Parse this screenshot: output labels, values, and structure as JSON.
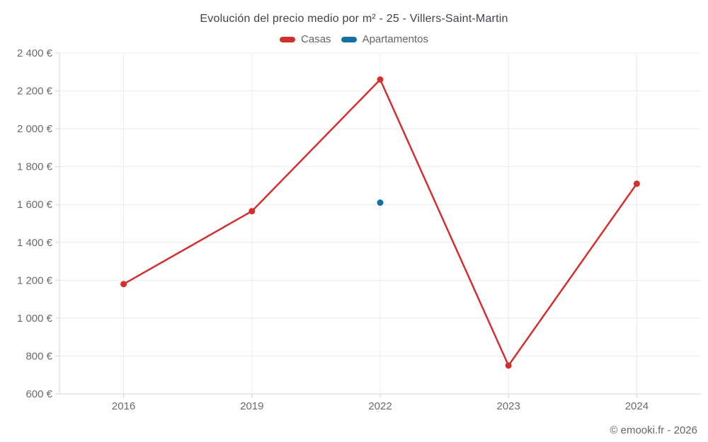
{
  "title": "Evolución del precio medio por m² - 25 - Villers-Saint-Martin",
  "footer": "© emooki.fr - 2026",
  "legend": [
    {
      "label": "Casas",
      "color": "#d32f2f"
    },
    {
      "label": "Apartamentos",
      "color": "#1272a5"
    }
  ],
  "colors": {
    "casas": "#d32f2f",
    "apartamentos": "#1272a5",
    "gridline": "#ececec",
    "axis_line": "#d6d6d6",
    "tick_label": "#666b70",
    "title_text": "#3f4449"
  },
  "chart_data": {
    "type": "line",
    "title": "Evolución del precio medio por m² - 25 - Villers-Saint-Martin",
    "categories": [
      "2016",
      "2019",
      "2022",
      "2023",
      "2024"
    ],
    "series": [
      {
        "name": "Casas",
        "color": "#d32f2f",
        "values": [
          1180,
          1565,
          2260,
          750,
          1710
        ]
      },
      {
        "name": "Apartamentos",
        "color": "#1272a5",
        "values": [
          null,
          null,
          1610,
          null,
          null
        ]
      }
    ],
    "xlabel": "",
    "ylabel": "",
    "ylim": [
      600,
      2400
    ],
    "y_ticks": {
      "values": [
        600,
        800,
        1000,
        1200,
        1400,
        1600,
        1800,
        2000,
        2200,
        2400
      ],
      "labels": [
        "600 €",
        "800 €",
        "1 000 €",
        "1 200 €",
        "1 400 €",
        "1 600 €",
        "1 800 €",
        "2 000 €",
        "2 200 €",
        "2 400 €"
      ]
    },
    "grid": true,
    "legend_position": "top",
    "currency": "€"
  }
}
